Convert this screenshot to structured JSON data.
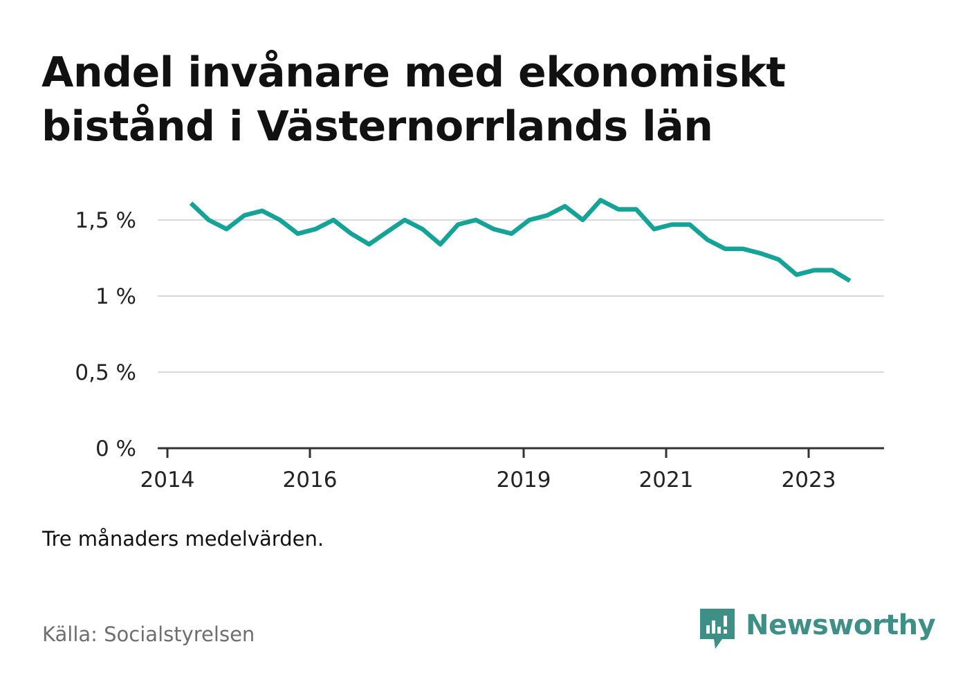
{
  "title": "Andel invånare med ekonomiskt bistånd i Västernorrlands län",
  "note": "Tre månaders medelvärden.",
  "source": "Källa: Socialstyrelsen",
  "brand": {
    "name": "Newsworthy",
    "icon": "newsworthy-logo-icon",
    "color": "#3e8f86"
  },
  "chart_data": {
    "type": "line",
    "title": "Andel invånare med ekonomiskt bistånd i Västernorrlands län",
    "xlabel": "",
    "ylabel": "",
    "xlim": [
      2014,
      2024.3
    ],
    "ylim": [
      0,
      1.5
    ],
    "y_ticks": [
      {
        "value": 0,
        "label": "0 %"
      },
      {
        "value": 0.5,
        "label": "0,5 %"
      },
      {
        "value": 1,
        "label": "1 %"
      },
      {
        "value": 1.5,
        "label": "1,5 %"
      }
    ],
    "x_ticks": [
      {
        "value": 2014,
        "label": "2014"
      },
      {
        "value": 2016,
        "label": "2016"
      },
      {
        "value": 2019,
        "label": "2019"
      },
      {
        "value": 2021,
        "label": "2021"
      },
      {
        "value": 2023,
        "label": "2023"
      }
    ],
    "grid": true,
    "legend": "none",
    "color": "#14a396",
    "series": [
      {
        "x": [
          2014.33,
          2014.58,
          2014.83,
          2015.08,
          2015.33,
          2015.58,
          2015.83,
          2016.08,
          2016.33,
          2016.58,
          2016.83,
          2017.08,
          2017.33,
          2017.58,
          2017.83,
          2018.08,
          2018.33,
          2018.58,
          2018.83,
          2019.08,
          2019.33,
          2019.58,
          2019.83,
          2020.08,
          2020.33,
          2020.58,
          2020.83,
          2021.08,
          2021.33,
          2021.58,
          2021.83,
          2022.08,
          2022.33,
          2022.58,
          2022.83,
          2023.08,
          2023.33,
          2023.58
        ],
        "values": [
          1.61,
          1.5,
          1.44,
          1.53,
          1.56,
          1.5,
          1.41,
          1.44,
          1.5,
          1.41,
          1.34,
          1.42,
          1.5,
          1.44,
          1.34,
          1.47,
          1.5,
          1.44,
          1.41,
          1.5,
          1.53,
          1.59,
          1.5,
          1.63,
          1.57,
          1.57,
          1.44,
          1.47,
          1.47,
          1.37,
          1.31,
          1.31,
          1.28,
          1.24,
          1.14,
          1.17,
          1.17,
          1.1
        ]
      }
    ]
  }
}
